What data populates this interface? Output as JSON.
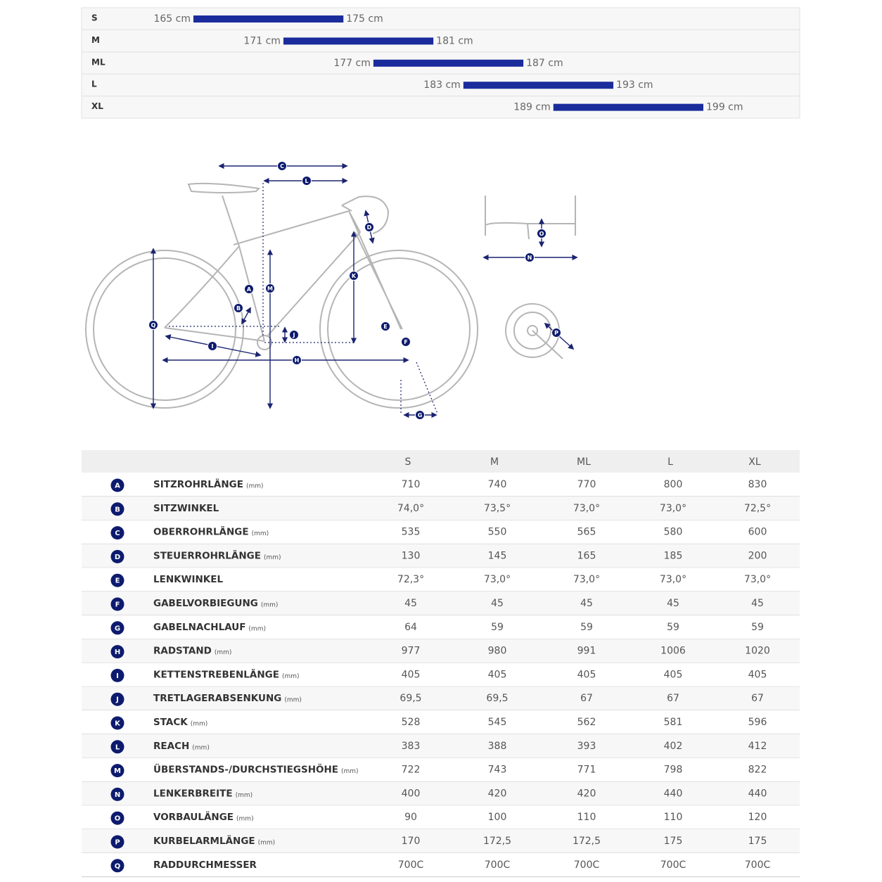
{
  "size_chart": {
    "rows": [
      {
        "size": "S",
        "from": 165,
        "to": 175,
        "from_label": "165 cm",
        "to_label": "175 cm"
      },
      {
        "size": "M",
        "from": 171,
        "to": 181,
        "from_label": "171 cm",
        "to_label": "181 cm"
      },
      {
        "size": "ML",
        "from": 177,
        "to": 187,
        "from_label": "177 cm",
        "to_label": "187 cm"
      },
      {
        "size": "L",
        "from": 183,
        "to": 193,
        "from_label": "183 cm",
        "to_label": "193 cm"
      },
      {
        "size": "XL",
        "from": 189,
        "to": 199,
        "from_label": "189 cm",
        "to_label": "199 cm"
      }
    ]
  },
  "geometry": {
    "header": [
      "S",
      "M",
      "ML",
      "L",
      "XL"
    ],
    "rows": [
      {
        "letter": "A",
        "name": "SITZROHRLÄNGE",
        "unit": "(mm)",
        "values": [
          "710",
          "740",
          "770",
          "800",
          "830"
        ]
      },
      {
        "letter": "B",
        "name": "SITZWINKEL",
        "values": [
          "74,0°",
          "73,5°",
          "73,0°",
          "73,0°",
          "72,5°"
        ]
      },
      {
        "letter": "C",
        "name": "OBERROHRLÄNGE",
        "unit": "(mm)",
        "values": [
          "535",
          "550",
          "565",
          "580",
          "600"
        ]
      },
      {
        "letter": "D",
        "name": "STEUERROHRLÄNGE",
        "unit": "(mm)",
        "values": [
          "130",
          "145",
          "165",
          "185",
          "200"
        ]
      },
      {
        "letter": "E",
        "name": "LENKWINKEL",
        "values": [
          "72,3°",
          "73,0°",
          "73,0°",
          "73,0°",
          "73,0°"
        ]
      },
      {
        "letter": "F",
        "name": "GABELVORBIEGUNG",
        "unit": "(mm)",
        "values": [
          "45",
          "45",
          "45",
          "45",
          "45"
        ]
      },
      {
        "letter": "G",
        "name": "GABELNACHLAUF",
        "unit": "(mm)",
        "values": [
          "64",
          "59",
          "59",
          "59",
          "59"
        ]
      },
      {
        "letter": "H",
        "name": "RADSTAND",
        "unit": "(mm)",
        "values": [
          "977",
          "980",
          "991",
          "1006",
          "1020"
        ]
      },
      {
        "letter": "I",
        "name": "KETTENSTREBENLÄNGE",
        "unit": "(mm)",
        "values": [
          "405",
          "405",
          "405",
          "405",
          "405"
        ]
      },
      {
        "letter": "J",
        "name": "TRETLAGERABSENKUNG",
        "unit": "(mm)",
        "values": [
          "69,5",
          "69,5",
          "67",
          "67",
          "67"
        ]
      },
      {
        "letter": "K",
        "name": "STACK",
        "unit": "(mm)",
        "values": [
          "528",
          "545",
          "562",
          "581",
          "596"
        ]
      },
      {
        "letter": "L",
        "name": "REACH",
        "unit": "(mm)",
        "values": [
          "383",
          "388",
          "393",
          "402",
          "412"
        ]
      },
      {
        "letter": "M",
        "name": "ÜBERSTANDS-/DURCHSTIEGSHÖHE",
        "unit": "(mm)",
        "values": [
          "722",
          "743",
          "771",
          "798",
          "822"
        ]
      },
      {
        "letter": "N",
        "name": "LENKERBREITE",
        "unit": "(mm)",
        "values": [
          "400",
          "420",
          "420",
          "440",
          "440"
        ]
      },
      {
        "letter": "O",
        "name": "VORBAULÄNGE",
        "unit": "(mm)",
        "values": [
          "90",
          "100",
          "110",
          "110",
          "120"
        ]
      },
      {
        "letter": "P",
        "name": "KURBELARMLÄNGE",
        "unit": "(mm)",
        "values": [
          "170",
          "172,5",
          "172,5",
          "175",
          "175"
        ]
      },
      {
        "letter": "Q",
        "name": "RADDURCHMESSER",
        "values": [
          "700C",
          "700C",
          "700C",
          "700C",
          "700C"
        ]
      }
    ]
  }
}
